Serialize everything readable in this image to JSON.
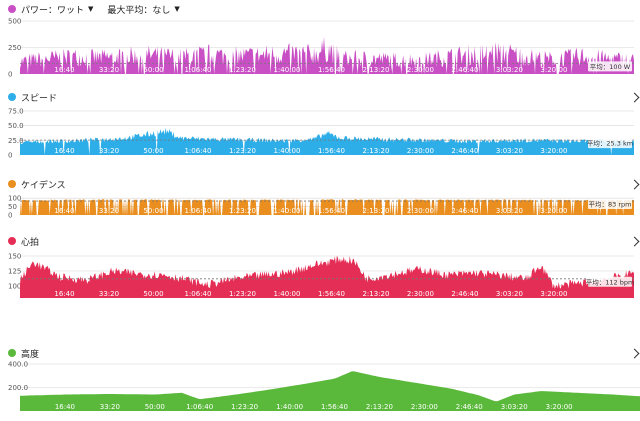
{
  "colors": {
    "power": "#c94fc4",
    "speed": "#2daee8",
    "cadence": "#ea8f1f",
    "heart_rate": "#e52e55",
    "elevation": "#5ab83b",
    "grid": "#d6d6d6",
    "avg_line": "#777777"
  },
  "header": {
    "metric_selector": "パワー：ワット",
    "max_avg_selector": "最大平均：なし"
  },
  "panels": {
    "power": {
      "title": "パワー：ワット",
      "avg_label": "平均：100 W"
    },
    "speed": {
      "title": "スピード",
      "avg_label": "平均：25.3 km"
    },
    "cadence": {
      "title": "ケイデンス",
      "avg_label": "平均：83 rpm"
    },
    "heart_rate": {
      "title": "心拍",
      "avg_label": "平均：112 bpm"
    },
    "elevation": {
      "title": "高度",
      "avg_label": ""
    }
  },
  "chart_data": [
    {
      "type": "area",
      "title": "パワー：ワット",
      "xlabel": "時間",
      "ylabel": "W",
      "x_range": [
        0,
        13800
      ],
      "ylim": [
        0,
        500
      ],
      "ytick_labels": [
        "500",
        "250",
        "0"
      ],
      "xtick_labels": [
        "16:40",
        "33:20",
        "50:00",
        "1:06:40",
        "1:23:20",
        "1:40:00",
        "1:56:40",
        "2:13:20",
        "2:30:00",
        "2:46:40",
        "3:03:20",
        "3:20:00"
      ],
      "average": 100,
      "avg_label": "平均：100 W",
      "profile": {
        "x": [
          0,
          600,
          1200,
          1800,
          2400,
          3000,
          3600,
          4200,
          4800,
          5400,
          6000,
          6600,
          6900,
          7200,
          7800,
          8400,
          9000,
          9600,
          10200,
          10800,
          11400,
          12000,
          12600,
          13200,
          13800
        ],
        "y": [
          150,
          180,
          200,
          190,
          210,
          220,
          200,
          230,
          210,
          220,
          240,
          230,
          300,
          190,
          180,
          170,
          160,
          200,
          230,
          260,
          200,
          170,
          210,
          180,
          160
        ]
      }
    },
    {
      "type": "area",
      "title": "スピード",
      "xlabel": "時間",
      "ylabel": "km/h",
      "x_range": [
        0,
        13800
      ],
      "ylim": [
        0,
        75
      ],
      "ytick_labels": [
        "75.0",
        "50.0",
        "25.0",
        "0"
      ],
      "xtick_labels": [
        "16:40",
        "33:20",
        "50:00",
        "1:06:40",
        "1:23:20",
        "1:40:00",
        "1:56:40",
        "2:13:20",
        "2:30:00",
        "2:46:40",
        "3:03:20",
        "3:20:00"
      ],
      "average": 25.3,
      "avg_label": "平均：25.3 km",
      "profile": {
        "x": [
          0,
          600,
          1200,
          1800,
          2400,
          3000,
          3300,
          3600,
          4200,
          4800,
          5400,
          6000,
          6600,
          6900,
          7200,
          7800,
          8400,
          9000,
          9600,
          10200,
          10800,
          11400,
          12000,
          12600,
          13200,
          13800
        ],
        "y": [
          22,
          24,
          25,
          27,
          30,
          38,
          42,
          30,
          28,
          27,
          26,
          25,
          28,
          38,
          30,
          28,
          27,
          26,
          25,
          24,
          25,
          26,
          25,
          24,
          25,
          24
        ]
      }
    },
    {
      "type": "area",
      "title": "ケイデンス",
      "xlabel": "時間",
      "ylabel": "rpm",
      "x_range": [
        0,
        13800
      ],
      "ylim": [
        0,
        125
      ],
      "ytick_labels": [
        "100",
        "50",
        "0"
      ],
      "xtick_labels": [
        "16:40",
        "33:20",
        "50:00",
        "1:06:40",
        "1:23:20",
        "1:40:00",
        "1:56:40",
        "2:13:20",
        "2:30:00",
        "2:46:40",
        "3:03:20",
        "3:20:00"
      ],
      "average": 83,
      "avg_label": "平均：83 rpm",
      "profile": {
        "x": [
          0,
          1200,
          2400,
          3600,
          4800,
          6000,
          7200,
          8400,
          9600,
          10800,
          12000,
          13200,
          13800
        ],
        "y": [
          88,
          90,
          91,
          90,
          89,
          90,
          91,
          90,
          89,
          90,
          89,
          88,
          88
        ]
      }
    },
    {
      "type": "area",
      "title": "心拍",
      "xlabel": "時間",
      "ylabel": "bpm",
      "x_range": [
        0,
        13800
      ],
      "ylim": [
        80,
        160
      ],
      "ytick_labels": [
        "150",
        "125",
        "100"
      ],
      "xtick_labels": [
        "16:40",
        "33:20",
        "50:00",
        "1:06:40",
        "1:23:20",
        "1:40:00",
        "1:56:40",
        "2:13:20",
        "2:30:00",
        "2:46:40",
        "3:03:20",
        "3:20:00"
      ],
      "average": 112,
      "avg_label": "平均：112 bpm",
      "profile": {
        "x": [
          0,
          300,
          900,
          1500,
          2100,
          2700,
          3300,
          3900,
          4200,
          4800,
          5400,
          6000,
          6600,
          7200,
          7500,
          7800,
          8400,
          9000,
          9600,
          10200,
          10800,
          11400,
          11700,
          12000,
          12600,
          13200,
          13800
        ],
        "y": [
          110,
          140,
          115,
          110,
          125,
          120,
          118,
          108,
          102,
          112,
          118,
          122,
          135,
          145,
          142,
          112,
          120,
          128,
          118,
          122,
          118,
          112,
          135,
          100,
          105,
          112,
          122
        ]
      }
    },
    {
      "type": "area",
      "title": "高度",
      "xlabel": "時間",
      "ylabel": "m",
      "x_range": [
        0,
        13800
      ],
      "ylim": [
        0,
        400
      ],
      "ytick_labels": [
        "400.0",
        "200.0"
      ],
      "xtick_labels": [
        "16:40",
        "33:20",
        "50:00",
        "1:06:40",
        "1:23:20",
        "1:40:00",
        "1:56:40",
        "2:13:20",
        "2:30:00",
        "2:46:40",
        "3:03:20",
        "3:20:00"
      ],
      "x": [
        0,
        1000,
        2000,
        3000,
        3600,
        4000,
        4800,
        5600,
        6400,
        7000,
        7400,
        8000,
        8800,
        9600,
        10200,
        10600,
        11000,
        11600,
        12400,
        13200,
        13800
      ],
      "y": [
        130,
        140,
        145,
        140,
        155,
        100,
        140,
        185,
        235,
        275,
        340,
        290,
        240,
        190,
        135,
        80,
        140,
        170,
        155,
        140,
        125
      ]
    }
  ]
}
